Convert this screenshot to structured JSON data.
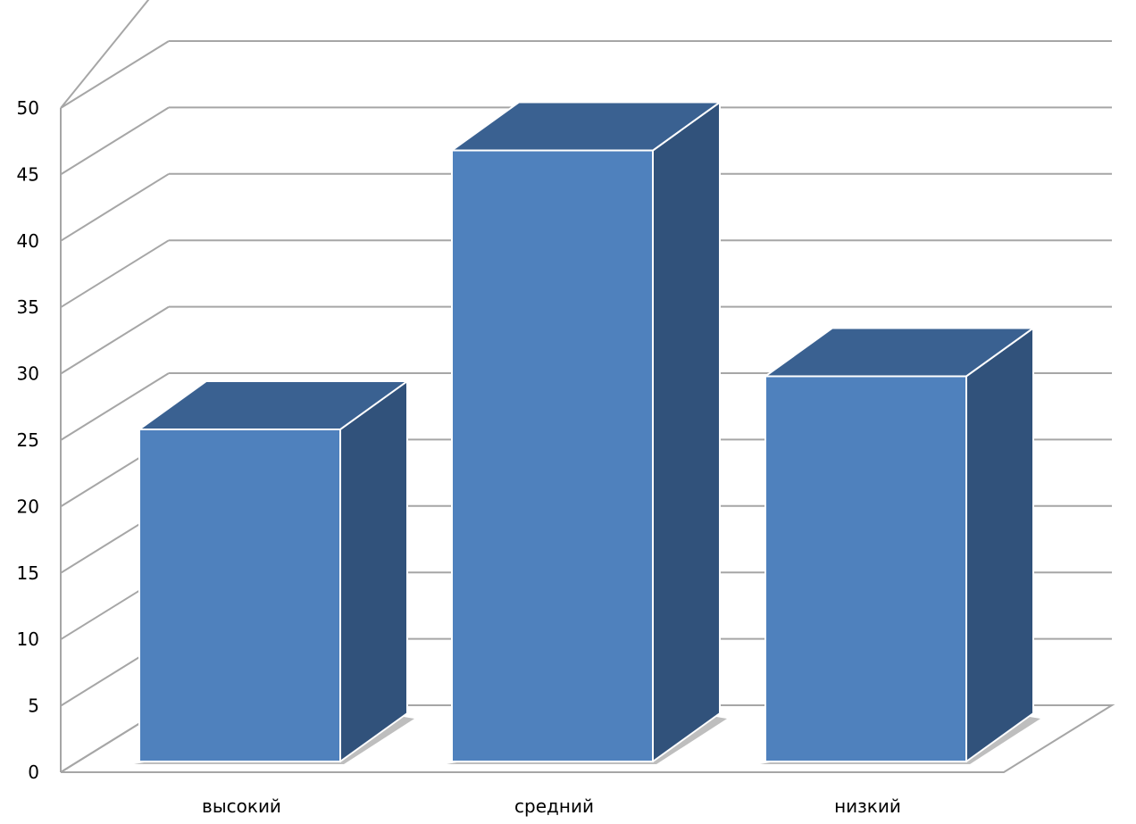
{
  "chart_data": {
    "type": "bar",
    "style": "3d-column",
    "categories": [
      "высокий",
      "средний",
      "низкий"
    ],
    "values": [
      25,
      46,
      29
    ],
    "ylim": [
      0,
      50
    ],
    "yticks": [
      0,
      5,
      10,
      15,
      20,
      25,
      30,
      35,
      40,
      45,
      50
    ],
    "grid": true,
    "legend": "none",
    "colors": {
      "front": "#4f81bd",
      "side": "#31527b",
      "top": "#3a6191",
      "grid": "#a6a6a6",
      "shadow": "#b7b7b7"
    }
  }
}
